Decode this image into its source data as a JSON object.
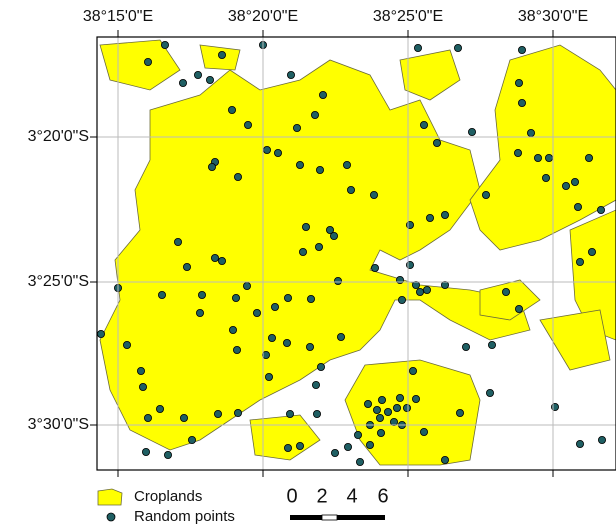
{
  "map": {
    "x_labels": [
      "38°15'0\"E",
      "38°20'0\"E",
      "38°25'0\"E",
      "38°30'0\"E"
    ],
    "y_labels": [
      "3°20'0\"S",
      "3°25'0\"S",
      "3°30'0\"S"
    ],
    "legend": [
      "Croplands",
      "Random points"
    ],
    "scale_labels": [
      "0",
      "2",
      "4",
      "6"
    ]
  }
}
